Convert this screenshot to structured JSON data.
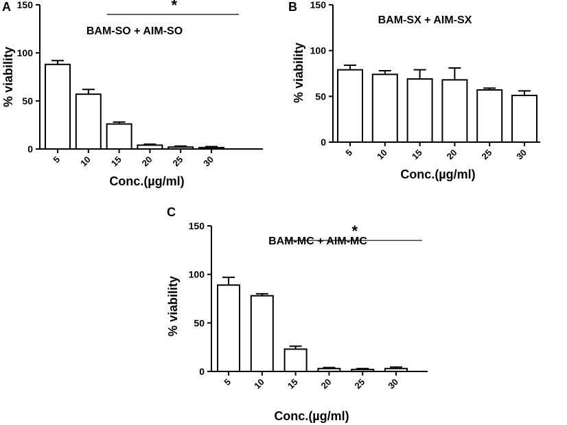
{
  "panels": [
    {
      "letter": "A",
      "title": "BAM-SO + AIM-SO"
    },
    {
      "letter": "B",
      "title": "BAM-SX + AIM-SX"
    },
    {
      "letter": "C",
      "title": "BAM-MC + AIM-MC"
    }
  ],
  "chart_data": [
    {
      "type": "bar",
      "panel": "A",
      "title": "BAM-SO + AIM-SO",
      "xlabel": "Conc.(µg/ml)",
      "ylabel": "% viability",
      "categories": [
        "5",
        "10",
        "15",
        "20",
        "25",
        "30"
      ],
      "values": [
        88,
        57,
        26,
        4,
        2,
        1.5
      ],
      "errors": [
        4,
        5,
        2,
        1,
        1,
        1
      ],
      "ylim": [
        0,
        150
      ],
      "yticks": [
        "0",
        "50",
        "100",
        "150"
      ],
      "significance": {
        "label": "*",
        "from_category": "15",
        "to_category": "30",
        "y": 140
      }
    },
    {
      "type": "bar",
      "panel": "B",
      "title": "BAM-SX + AIM-SX",
      "xlabel": "Conc.(µg/ml)",
      "ylabel": "% viability",
      "categories": [
        "5",
        "10",
        "15",
        "20",
        "25",
        "30"
      ],
      "values": [
        79,
        74,
        69,
        68,
        57,
        51
      ],
      "errors": [
        5,
        4,
        10,
        13,
        2,
        5
      ],
      "ylim": [
        0,
        150
      ],
      "yticks": [
        "0",
        "50",
        "100",
        "150"
      ]
    },
    {
      "type": "bar",
      "panel": "C",
      "title": "BAM-MC + AIM-MC",
      "xlabel": "Conc.(µg/ml)",
      "ylabel": "% viability",
      "categories": [
        "5",
        "10",
        "15",
        "20",
        "25",
        "30"
      ],
      "values": [
        89,
        78,
        23,
        3,
        2,
        3
      ],
      "errors": [
        8,
        2,
        3,
        1,
        1,
        1.5
      ],
      "ylim": [
        0,
        150
      ],
      "yticks": [
        "0",
        "50",
        "100",
        "150"
      ],
      "significance": {
        "label": "*",
        "from_category": "15",
        "to_category": "30",
        "y": 135
      }
    }
  ]
}
